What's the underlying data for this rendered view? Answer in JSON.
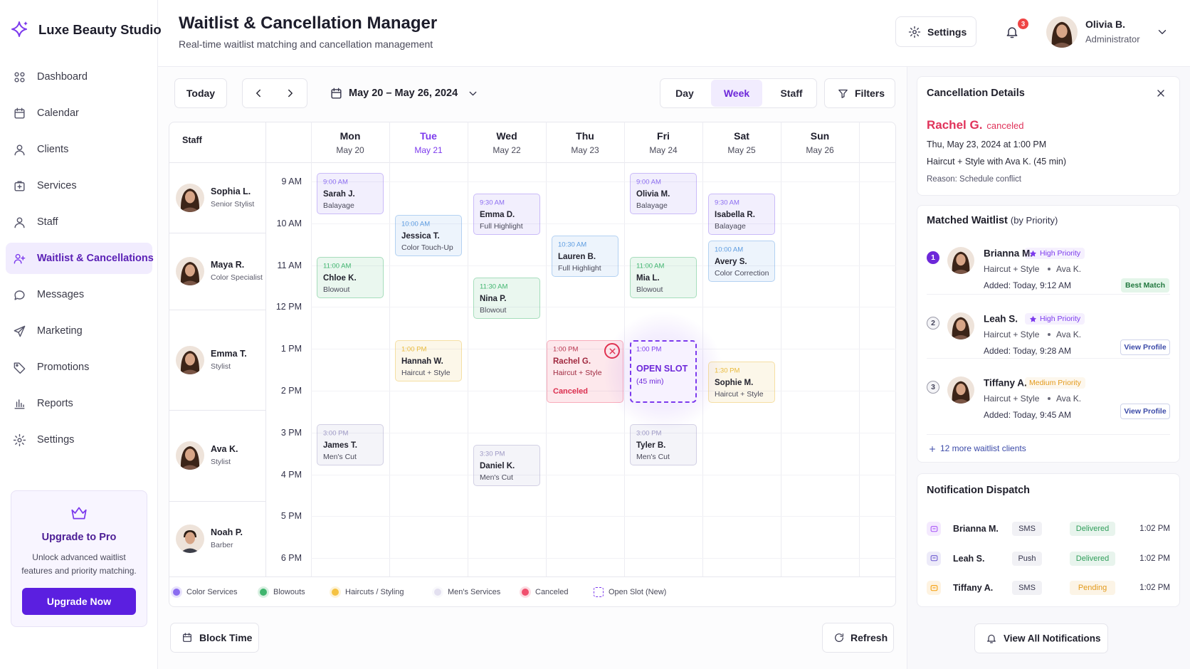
{
  "brand": "Luxe Beauty Studio",
  "nav": [
    {
      "label": "Dashboard",
      "active": false
    },
    {
      "label": "Calendar",
      "active": false
    },
    {
      "label": "Clients",
      "active": false
    },
    {
      "label": "Services",
      "active": false
    },
    {
      "label": "Staff",
      "active": false
    },
    {
      "label": "Waitlist & Cancellations",
      "active": true
    },
    {
      "label": "Messages",
      "active": false
    },
    {
      "label": "Marketing",
      "active": false
    },
    {
      "label": "Promotions",
      "active": false
    },
    {
      "label": "Reports",
      "active": false
    },
    {
      "label": "Settings",
      "active": false
    }
  ],
  "upgrade": {
    "title": "Upgrade to Pro",
    "text": [
      "Unlock advanced waitlist",
      "features and priority matching."
    ],
    "button": "Upgrade Now"
  },
  "header": {
    "title": "Waitlist & Cancellation Manager",
    "subtitle": "Real-time waitlist matching and cancellation management",
    "settings": "Settings",
    "notification_count": 3,
    "user_name": "Olivia B.",
    "user_role": "Administrator"
  },
  "toolbar": {
    "today": "Today",
    "date_range": "May 20 – May 26, 2024",
    "views": [
      {
        "label": "Day",
        "active": false
      },
      {
        "label": "Week",
        "active": true
      },
      {
        "label": "Staff",
        "active": false
      }
    ],
    "filters": "Filters"
  },
  "calendar": {
    "staff_label": "Staff",
    "staff": [
      {
        "name": "Sophia L.",
        "role": "Senior Stylist"
      },
      {
        "name": "Maya R.",
        "role": "Color Specialist"
      },
      {
        "name": "Emma T.",
        "role": "Stylist"
      },
      {
        "name": "Ava K.",
        "role": "Stylist"
      },
      {
        "name": "Noah P.",
        "role": "Barber"
      }
    ],
    "times": [
      "9 AM",
      "10 AM",
      "11 AM",
      "12 PM",
      "1 PM",
      "2 PM",
      "3 PM",
      "4 PM",
      "5 PM",
      "6 PM"
    ],
    "days": [
      {
        "name": "Mon",
        "date": "May 20",
        "highlight": false,
        "appointments": [
          {
            "time": "9:00 AM",
            "client": "Sarah J.",
            "service": "Balayage",
            "color": "#8b6cf0"
          },
          {
            "time": "11:00 AM",
            "client": "Chloe K.",
            "service": "Blowout",
            "color": "#3fb56e"
          },
          {
            "time": "3:00 PM",
            "client": "James T.",
            "service": "Men's Cut",
            "color": "#9d98c4"
          }
        ]
      },
      {
        "name": "Tue",
        "date": "May 21",
        "highlight": true,
        "appointments": [
          {
            "time": "10:00 AM",
            "client": "Jessica T.",
            "service": "Color Touch-Up",
            "color": "#5b9be0"
          },
          {
            "time": "1:00 PM",
            "client": "Hannah W.",
            "service": "Haircut + Style",
            "color": "#e8b93a"
          }
        ]
      },
      {
        "name": "Wed",
        "date": "May 22",
        "highlight": false,
        "appointments": [
          {
            "time": "9:30 AM",
            "client": "Emma D.",
            "service": "Full Highlight",
            "color": "#8b6cf0"
          },
          {
            "time": "11:30 AM",
            "client": "Nina P.",
            "service": "Blowout",
            "color": "#3fb56e"
          },
          {
            "time": "3:30 PM",
            "client": "Daniel K.",
            "service": "Men's Cut",
            "color": "#9d98c4"
          }
        ]
      },
      {
        "name": "Thu",
        "date": "May 23",
        "highlight": false,
        "appointments": [
          {
            "time": "10:30 AM",
            "client": "Lauren B.",
            "service": "Full Highlight",
            "color": "#5b9be0"
          },
          {
            "time": "1:00 PM",
            "client": "Rachel G.",
            "service": "Haircut + Style",
            "status": "Canceled",
            "color": "#f0506e"
          }
        ]
      },
      {
        "name": "Fri",
        "date": "May 24",
        "highlight": false,
        "appointments": [
          {
            "time": "9:00 AM",
            "client": "Olivia M.",
            "service": "Balayage",
            "color": "#8b6cf0"
          },
          {
            "time": "11:00 AM",
            "client": "Mia L.",
            "service": "Blowout",
            "color": "#3fb56e"
          },
          {
            "time": "1:00 PM",
            "client": "OPEN SLOT",
            "service": "(45 min)",
            "color": "#7c3aed",
            "open": true
          },
          {
            "time": "3:00 PM",
            "client": "Tyler B.",
            "service": "Men's Cut",
            "color": "#9d98c4"
          }
        ]
      },
      {
        "name": "Sat",
        "date": "May 25",
        "highlight": false,
        "appointments": [
          {
            "time": "9:30 AM",
            "client": "Isabella R.",
            "service": "Balayage",
            "color": "#8b6cf0"
          },
          {
            "time": "10:00 AM",
            "client": "Avery S.",
            "service": "Color Correction",
            "color": "#5b9be0"
          },
          {
            "time": "1:30 PM",
            "client": "Sophie M.",
            "service": "Haircut + Style",
            "color": "#e8b93a"
          }
        ]
      },
      {
        "name": "Sun",
        "date": "May 26",
        "highlight": false,
        "appointments": []
      }
    ],
    "legend": [
      {
        "label": "Color Services",
        "color": "#8b6cf0"
      },
      {
        "label": "Blowouts",
        "color": "#3fb56e"
      },
      {
        "label": "Haircuts / Styling",
        "color": "#f5c242"
      },
      {
        "label": "Men's Services",
        "color": "#e3e0f0"
      },
      {
        "label": "Canceled",
        "color": "#f0506e"
      },
      {
        "label": "Open Slot (New)",
        "color": "#7c3aed",
        "dashed": true
      }
    ]
  },
  "cancellation": {
    "title": "Cancellation Details",
    "client": "Rachel G.",
    "status": "canceled",
    "when": "Thu, May 23, 2024 at 1:00 PM",
    "service": "Haircut + Style with Ava K. (45 min)",
    "reason": "Reason: Schedule conflict"
  },
  "waitlist": {
    "title": "Matched Waitlist",
    "title_note": "(by Priority)",
    "items": [
      {
        "rank": 1,
        "name": "Brianna M.",
        "priority": "High Priority",
        "priority_color": "#7c3aed",
        "service": "Haircut + Style",
        "stylist": "Ava K.",
        "added": "Added: Today, 9:12 AM",
        "action": "Best Match",
        "action_kind": "badge"
      },
      {
        "rank": 2,
        "name": "Leah S.",
        "priority": "High Priority",
        "priority_color": "#7c3aed",
        "service": "Haircut + Style",
        "stylist": "Ava K.",
        "added": "Added: Today, 9:28 AM",
        "action": "View Profile",
        "action_kind": "button"
      },
      {
        "rank": 3,
        "name": "Tiffany A.",
        "priority": "Medium Priority",
        "priority_color": "#e39a1c",
        "service": "Haircut + Style",
        "stylist": "Ava K.",
        "added": "Added: Today, 9:45 AM",
        "action": "View Profile",
        "action_kind": "button"
      }
    ],
    "more": "12 more waitlist clients"
  },
  "notifications": {
    "title": "Notification Dispatch",
    "rows": [
      {
        "name": "Brianna M.",
        "channel": "SMS",
        "status": "Delivered",
        "status_color": "#2f9e5a",
        "time": "1:02 PM"
      },
      {
        "name": "Leah S.",
        "channel": "Push",
        "status": "Delivered",
        "status_color": "#2f9e5a",
        "time": "1:02 PM"
      },
      {
        "name": "Tiffany A.",
        "channel": "SMS",
        "status": "Pending",
        "status_color": "#e39a1c",
        "time": "1:02 PM"
      }
    ],
    "button": "View All Notifications"
  },
  "footer": {
    "block_time": "Block Time",
    "refresh": "Refresh"
  }
}
